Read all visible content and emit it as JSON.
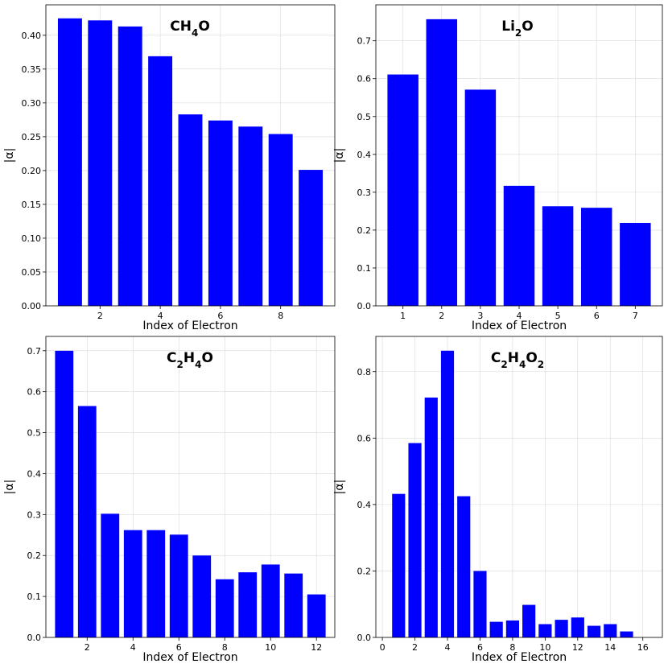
{
  "chart_data": [
    {
      "type": "bar",
      "title": "CH4O",
      "title_parts": [
        {
          "t": "CH"
        },
        {
          "t": "4",
          "sub": true
        },
        {
          "t": "O"
        }
      ],
      "xlabel": "Index of Electron",
      "ylabel": "|α|",
      "x": [
        1,
        2,
        3,
        4,
        5,
        6,
        7,
        8,
        9
      ],
      "values": [
        0.425,
        0.422,
        0.413,
        0.369,
        0.283,
        0.274,
        0.265,
        0.254,
        0.201
      ],
      "xlim": [
        0.2,
        9.8
      ],
      "ylim": [
        0,
        0.445
      ],
      "xticks": [
        "2",
        "4",
        "6",
        "8"
      ],
      "yticks": [
        "0.00",
        "0.05",
        "0.10",
        "0.15",
        "0.20",
        "0.25",
        "0.30",
        "0.35",
        "0.40"
      ],
      "grid": true
    },
    {
      "type": "bar",
      "title": "Li2O",
      "title_parts": [
        {
          "t": "Li"
        },
        {
          "t": "2",
          "sub": true
        },
        {
          "t": "O"
        }
      ],
      "xlabel": "Index of Electron",
      "ylabel": "|α|",
      "x": [
        1,
        2,
        3,
        4,
        5,
        6,
        7
      ],
      "values": [
        0.611,
        0.757,
        0.571,
        0.317,
        0.263,
        0.259,
        0.219
      ],
      "xlim": [
        0.3,
        7.7
      ],
      "ylim": [
        0,
        0.795
      ],
      "xticks": [
        "1",
        "2",
        "3",
        "4",
        "5",
        "6",
        "7"
      ],
      "yticks": [
        "0.0",
        "0.1",
        "0.2",
        "0.3",
        "0.4",
        "0.5",
        "0.6",
        "0.7"
      ],
      "grid": true
    },
    {
      "type": "bar",
      "title": "C2H4O",
      "title_parts": [
        {
          "t": "C"
        },
        {
          "t": "2",
          "sub": true
        },
        {
          "t": "H"
        },
        {
          "t": "4",
          "sub": true
        },
        {
          "t": "O"
        }
      ],
      "xlabel": "Index of Electron",
      "ylabel": "|α|",
      "x": [
        1,
        2,
        3,
        4,
        5,
        6,
        7,
        8,
        9,
        10,
        11,
        12
      ],
      "values": [
        0.7,
        0.565,
        0.302,
        0.262,
        0.262,
        0.251,
        0.2,
        0.142,
        0.159,
        0.178,
        0.156,
        0.105
      ],
      "xlim": [
        0.2,
        12.8
      ],
      "ylim": [
        0,
        0.735
      ],
      "xticks": [
        "2",
        "4",
        "6",
        "8",
        "10",
        "12"
      ],
      "yticks": [
        "0.0",
        "0.1",
        "0.2",
        "0.3",
        "0.4",
        "0.5",
        "0.6",
        "0.7"
      ],
      "grid": true
    },
    {
      "type": "bar",
      "title": "C2H4O2",
      "title_parts": [
        {
          "t": "C"
        },
        {
          "t": "2",
          "sub": true
        },
        {
          "t": "H"
        },
        {
          "t": "4",
          "sub": true
        },
        {
          "t": "O"
        },
        {
          "t": "2",
          "sub": true
        }
      ],
      "xlabel": "Index of Electron",
      "ylabel": "|α|",
      "x": [
        1,
        2,
        3,
        4,
        5,
        6,
        7,
        8,
        9,
        10,
        11,
        12,
        13,
        14,
        15
      ],
      "values": [
        0.432,
        0.585,
        0.722,
        0.863,
        0.425,
        0.2,
        0.047,
        0.051,
        0.098,
        0.04,
        0.053,
        0.06,
        0.035,
        0.04,
        0.018
      ],
      "xlim": [
        -0.4,
        17.2
      ],
      "ylim": [
        0,
        0.906
      ],
      "xticks": [
        "0",
        "2",
        "4",
        "6",
        "8",
        "10",
        "12",
        "14",
        "16"
      ],
      "yticks": [
        "0.0",
        "0.2",
        "0.4",
        "0.6",
        "0.8"
      ],
      "grid": true
    }
  ]
}
